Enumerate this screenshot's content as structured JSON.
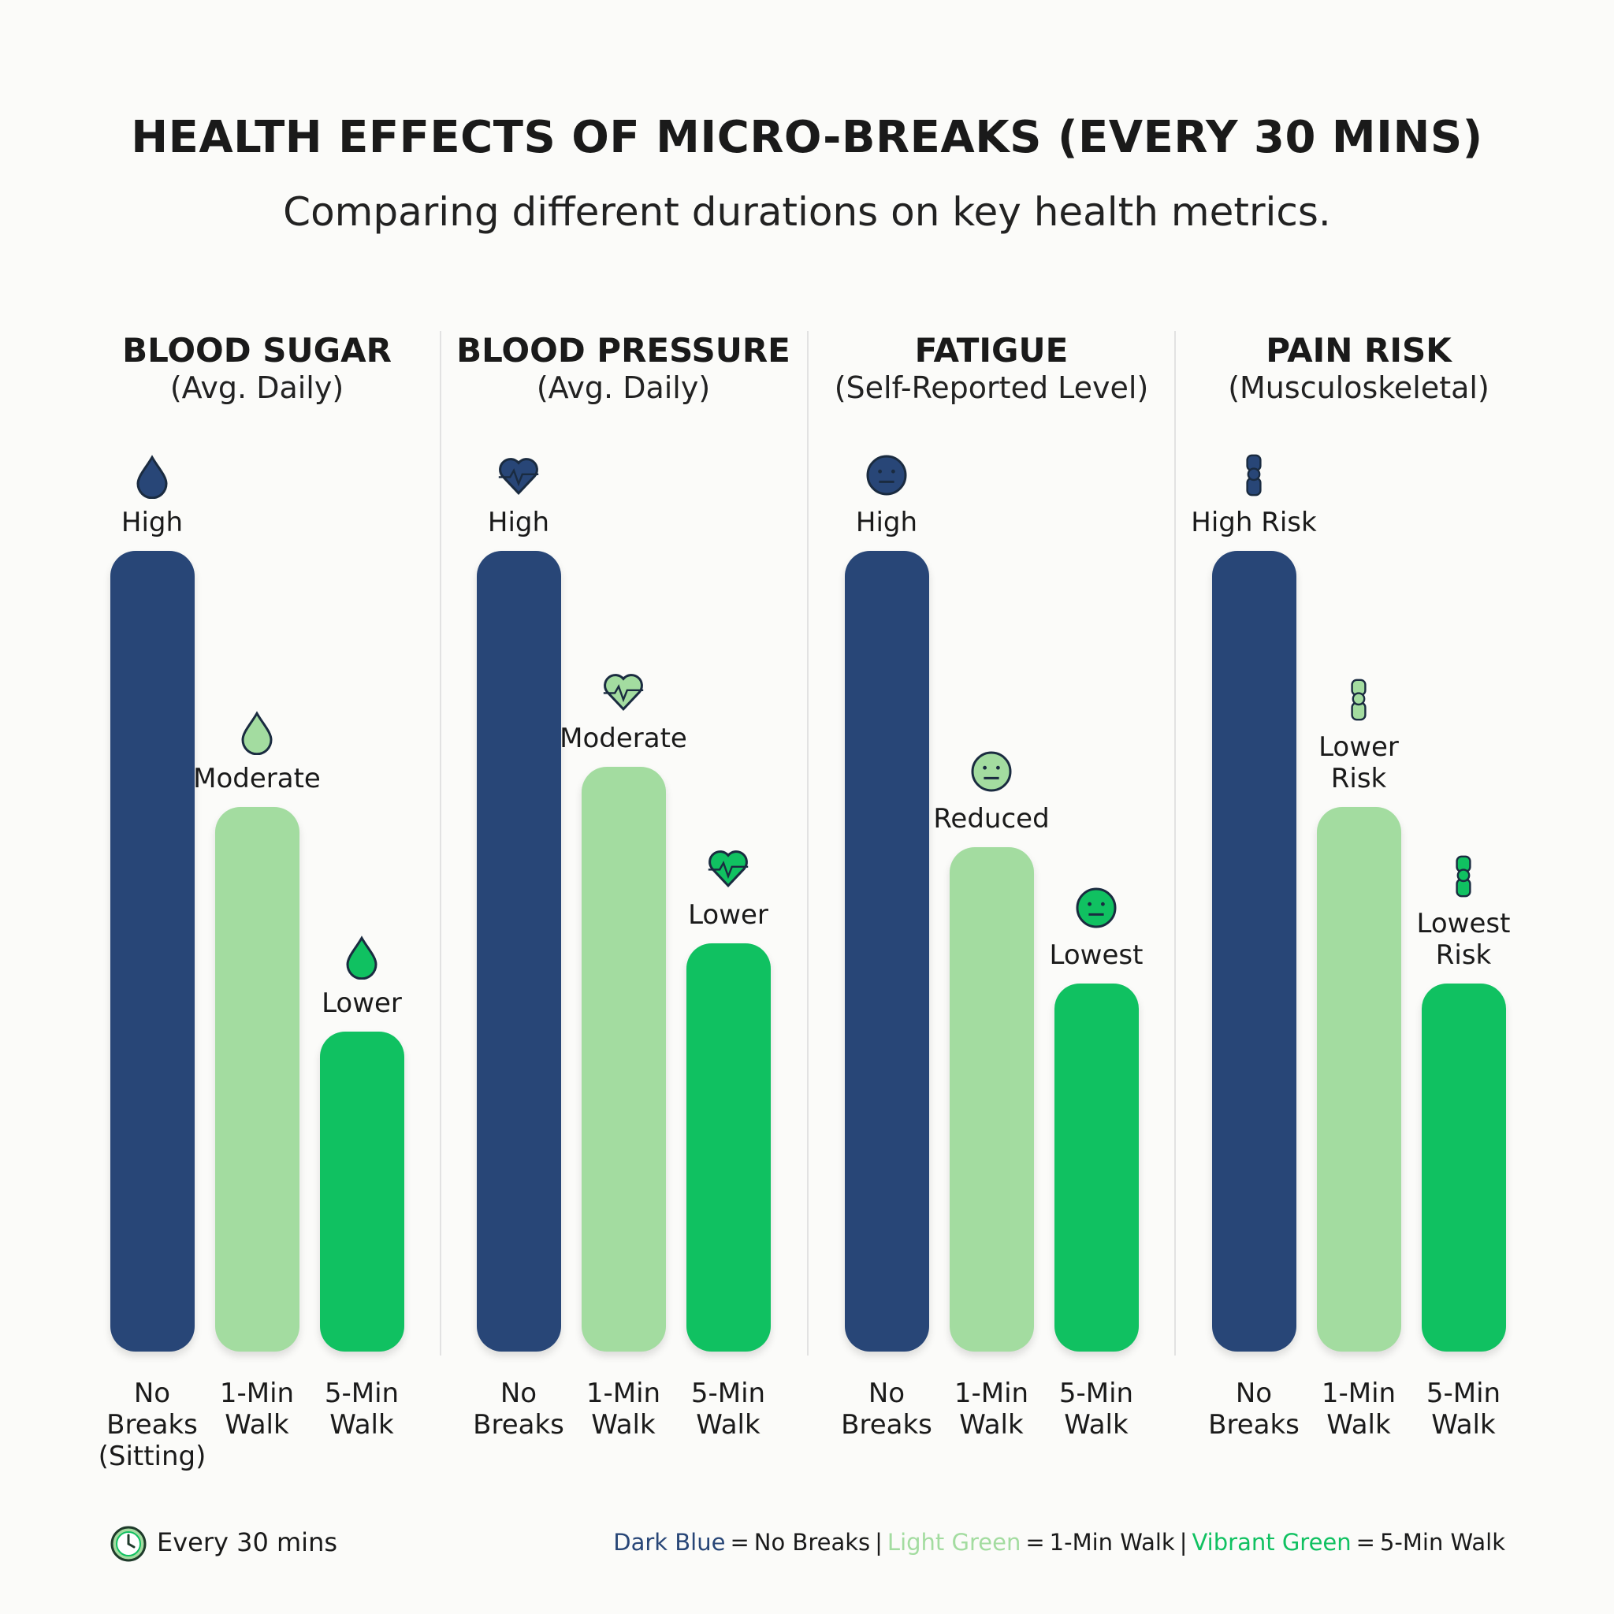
{
  "title": "HEALTH EFFECTS OF MICRO-BREAKS (EVERY 30 MINS)",
  "subtitle": "Comparing different durations on key health metrics.",
  "chart_data": [
    {
      "type": "bar",
      "title": "BLOOD SUGAR",
      "subtitle": "(Avg. Daily)",
      "categories": [
        "No Breaks (Sitting)",
        "1-Min Walk",
        "5-Min Walk"
      ],
      "values": [
        100,
        68,
        40
      ],
      "labels": [
        "High",
        "Moderate",
        "Lower"
      ],
      "colors": [
        "#284677",
        "#a3dca0",
        "#10c161"
      ]
    },
    {
      "type": "bar",
      "title": "BLOOD PRESSURE",
      "subtitle": "(Avg. Daily)",
      "categories": [
        "No Breaks",
        "1-Min Walk",
        "5-Min Walk"
      ],
      "values": [
        100,
        73,
        51
      ],
      "labels": [
        "High",
        "Moderate",
        "Lower"
      ],
      "colors": [
        "#284677",
        "#a3dca0",
        "#10c161"
      ]
    },
    {
      "type": "bar",
      "title": "FATIGUE",
      "subtitle": "(Self-Reported Level)",
      "categories": [
        "No Breaks",
        "1-Min Walk",
        "5-Min Walk"
      ],
      "values": [
        100,
        63,
        46
      ],
      "labels": [
        "High",
        "Reduced",
        "Lowest"
      ],
      "colors": [
        "#284677",
        "#a3dca0",
        "#10c161"
      ]
    },
    {
      "type": "bar",
      "title": "PAIN RISK",
      "subtitle": "(Musculoskeletal)",
      "categories": [
        "No Breaks",
        "1-Min Walk",
        "5-Min Walk"
      ],
      "values": [
        100,
        68,
        46
      ],
      "labels": [
        "High Risk",
        "Lower Risk",
        "Lowest Risk"
      ],
      "colors": [
        "#284677",
        "#a3dca0",
        "#10c161"
      ]
    }
  ],
  "footer_note": "Every 30 mins",
  "legend": [
    {
      "swatch": "Dark Blue",
      "equals": "=",
      "label": "No Breaks",
      "color": "#284677"
    },
    {
      "swatch": "Light Green",
      "equals": "=",
      "label": "1-Min Walk",
      "color": "#a3dca0"
    },
    {
      "swatch": "Vibrant Green",
      "equals": "=",
      "label": "5-Min Walk",
      "color": "#10c161"
    }
  ],
  "legend_separator": "|"
}
